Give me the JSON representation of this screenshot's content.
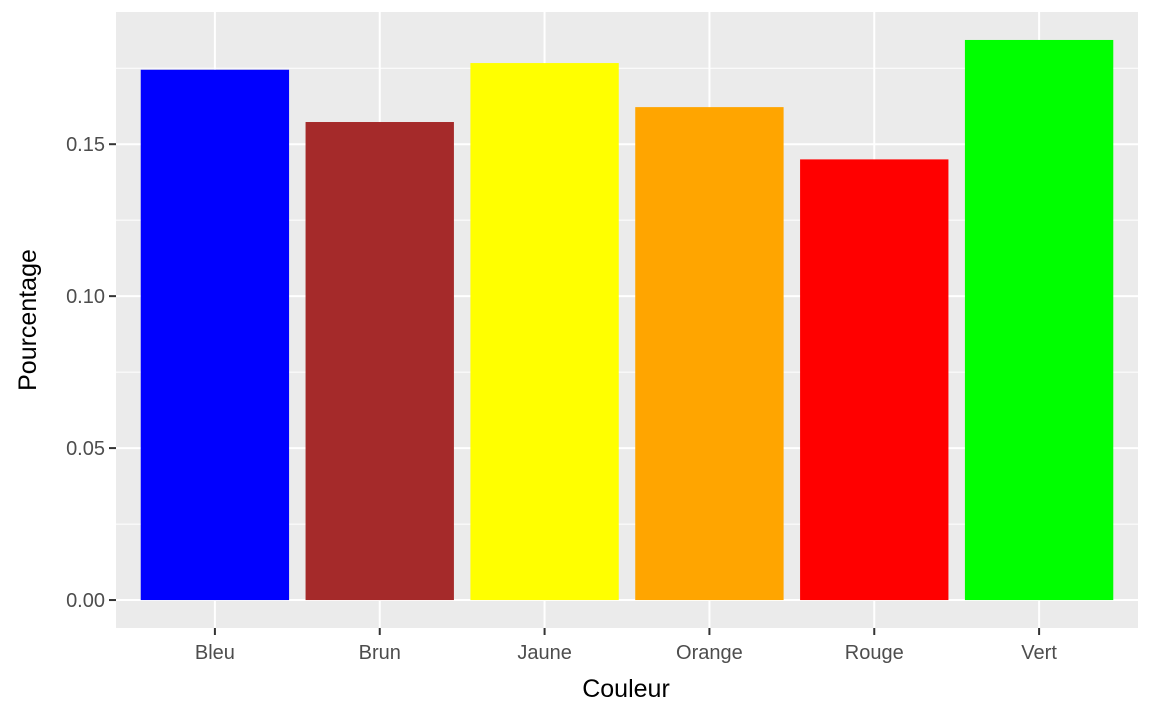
{
  "chart_data": {
    "type": "bar",
    "title": "",
    "xlabel": "Couleur",
    "ylabel": "Pourcentage",
    "categories": [
      "Bleu",
      "Brun",
      "Jaune",
      "Orange",
      "Rouge",
      "Vert"
    ],
    "values": [
      0.1745,
      0.1573,
      0.1767,
      0.1622,
      0.145,
      0.1843
    ],
    "bar_colors": [
      "#0000ff",
      "#a52a2a",
      "#ffff00",
      "#ffa500",
      "#ff0000",
      "#00ff00"
    ],
    "ylim": [
      -0.0092,
      0.1935
    ],
    "y_ticks": [
      0.0,
      0.05,
      0.1,
      0.15
    ],
    "y_tick_labels": [
      "0.00",
      "0.05",
      "0.10",
      "0.15"
    ],
    "grid": true,
    "legend": "none",
    "panel_background": "#ebebeb",
    "grid_color": "#ffffff"
  }
}
